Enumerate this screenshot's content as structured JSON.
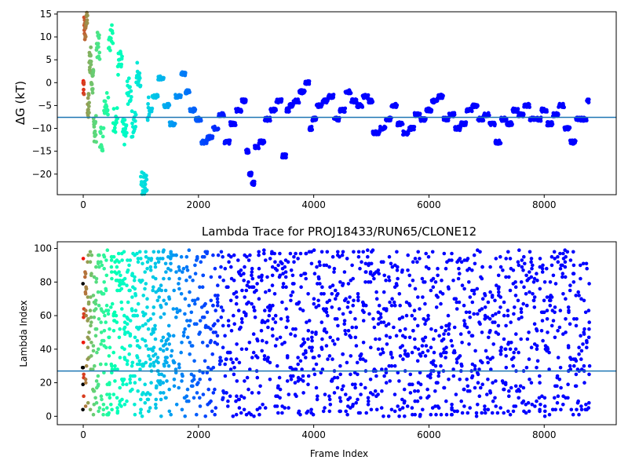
{
  "chart_data": [
    {
      "type": "scatter",
      "title": "",
      "xlabel": "",
      "ylabel": "ΔG (kT)",
      "xlim": [
        -450,
        9250
      ],
      "ylim": [
        -24.5,
        15.5
      ],
      "xticks": [
        0,
        2000,
        4000,
        6000,
        8000
      ],
      "xtick_labels": [
        "0",
        "2000",
        "4000",
        "6000",
        "8000"
      ],
      "yticks": [
        -20,
        -15,
        -10,
        -5,
        0,
        5,
        10,
        15
      ],
      "ytick_labels": [
        "−20",
        "−15",
        "−10",
        "−5",
        "0",
        "5",
        "10",
        "15"
      ],
      "hline": -7.6,
      "hline_color": "#1f77b4",
      "colormap": "rainbow (red at frame 0 → violet at later frames)",
      "grid": false,
      "x": [
        0,
        30,
        60,
        90,
        120,
        160,
        200,
        260,
        320,
        400,
        480,
        560,
        640,
        720,
        800,
        880,
        960,
        1040,
        1080,
        1150,
        1250,
        1350,
        1450,
        1550,
        1650,
        1750,
        1800,
        1900,
        2000,
        2100,
        2200,
        2300,
        2400,
        2500,
        2600,
        2700,
        2800,
        2850,
        2900,
        2950,
        3000,
        3100,
        3200,
        3300,
        3400,
        3500,
        3550,
        3600,
        3700,
        3800,
        3900,
        3950,
        4000,
        4100,
        4200,
        4300,
        4400,
        4500,
        4600,
        4700,
        4800,
        4900,
        5000,
        5050,
        5100,
        5200,
        5300,
        5400,
        5500,
        5600,
        5700,
        5800,
        5900,
        6000,
        6100,
        6200,
        6300,
        6400,
        6500,
        6600,
        6700,
        6800,
        6900,
        7000,
        7100,
        7200,
        7300,
        7400,
        7500,
        7600,
        7700,
        7800,
        7900,
        8000,
        8100,
        8200,
        8300,
        8400,
        8500,
        8600,
        8700,
        8780
      ],
      "y": [
        0,
        12,
        15,
        -5,
        5,
        0,
        -10,
        8,
        -12,
        -4,
        10,
        -8,
        4,
        -11,
        -2,
        -9,
        2,
        -22,
        -23,
        -6,
        -3,
        1,
        -5,
        -9,
        -3,
        2,
        -2,
        -6,
        -8,
        -13,
        -12,
        -10,
        -7,
        -13,
        -9,
        -6,
        -4,
        -15,
        -20,
        -22,
        -14,
        -13,
        -8,
        -6,
        -4,
        -16,
        -6,
        -5,
        -4,
        -2,
        0,
        -10,
        -8,
        -5,
        -4,
        -3,
        -8,
        -6,
        -2,
        -4,
        -5,
        -3,
        -4,
        -11,
        -11,
        -10,
        -8,
        -5,
        -9,
        -11,
        -10,
        -7,
        -8,
        -6,
        -4,
        -3,
        -8,
        -7,
        -10,
        -9,
        -6,
        -5,
        -8,
        -7,
        -9,
        -13,
        -8,
        -9,
        -6,
        -7,
        -5,
        -8,
        -8,
        -6,
        -9,
        -7,
        -5,
        -10,
        -13,
        -8,
        -8,
        -4
      ]
    },
    {
      "type": "scatter",
      "title": "Lambda Trace for PROJ18433/RUN65/CLONE12",
      "xlabel": "Frame Index",
      "ylabel": "Lambda Index",
      "xlim": [
        -450,
        9250
      ],
      "ylim": [
        -5,
        104
      ],
      "xticks": [
        0,
        2000,
        4000,
        6000,
        8000
      ],
      "xtick_labels": [
        "0",
        "2000",
        "4000",
        "6000",
        "8000"
      ],
      "yticks": [
        0,
        20,
        40,
        60,
        80,
        100
      ],
      "ytick_labels": [
        "0",
        "20",
        "40",
        "60",
        "80",
        "100"
      ],
      "hline": 27,
      "hline_color": "#1f77b4",
      "colormap": "rainbow (red at frame 0 → violet at later frames)",
      "grid": false,
      "x_range": [
        0,
        8780
      ],
      "y_range": [
        0,
        99
      ]
    }
  ]
}
